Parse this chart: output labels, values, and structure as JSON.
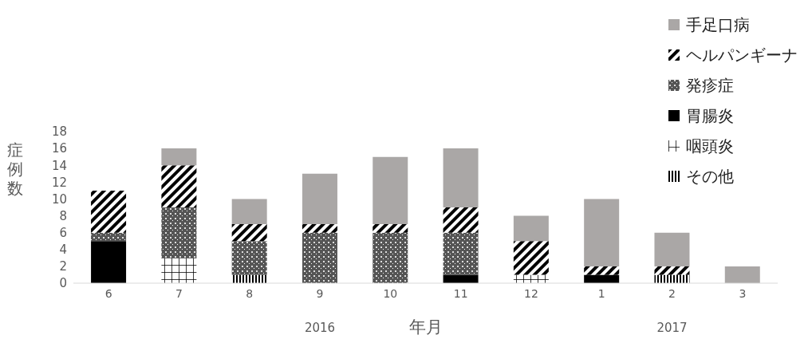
{
  "chart_data": {
    "type": "bar",
    "stacked": true,
    "ylabel": "症例数",
    "xlabel": "年月",
    "categories": [
      "6",
      "7",
      "8",
      "9",
      "10",
      "11",
      "12",
      "1",
      "2",
      "3"
    ],
    "series": [
      {
        "name": "その他",
        "color": "#000000",
        "values": [
          0,
          0,
          1,
          0,
          0,
          0,
          0,
          0,
          1,
          0
        ]
      },
      {
        "name": "咽頭炎",
        "color": "#000000",
        "values": [
          0,
          3,
          0,
          0,
          0,
          0,
          1,
          0,
          0,
          0
        ]
      },
      {
        "name": "胃腸炎",
        "color": "#000000",
        "values": [
          5,
          0,
          0,
          0,
          0,
          1,
          0,
          1,
          0,
          0
        ]
      },
      {
        "name": "発疹症",
        "color": "#555555",
        "values": [
          1,
          6,
          4,
          6,
          6,
          5,
          0,
          0,
          0,
          0
        ]
      },
      {
        "name": "ヘルパンギーナ",
        "color": "#000000",
        "values": [
          5,
          5,
          2,
          1,
          1,
          3,
          4,
          1,
          1,
          0
        ]
      },
      {
        "name": "手足口病",
        "color": "#aaa7a6",
        "values": [
          0,
          2,
          3,
          6,
          8,
          7,
          3,
          8,
          4,
          2
        ]
      }
    ],
    "ylim": [
      0,
      18
    ],
    "yticks": [
      0,
      2,
      4,
      6,
      8,
      10,
      12,
      14,
      16,
      18
    ],
    "legend": "top right",
    "annotations": [
      "2016",
      "2017"
    ]
  }
}
